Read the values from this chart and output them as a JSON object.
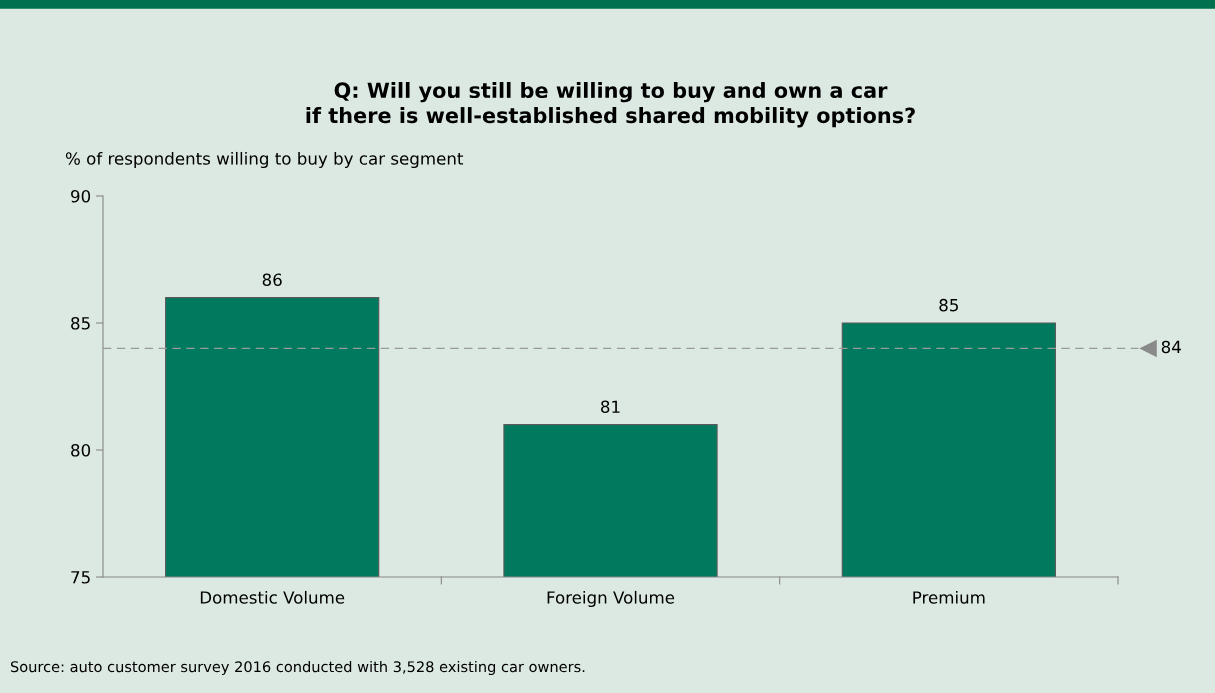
{
  "chart_data": {
    "type": "bar",
    "title": "Q: Will you still be willing to buy and own a car\nif there is well-established shared mobility options?",
    "ylabel": "% of respondents willing to buy by car segment",
    "categories": [
      "Domestic Volume",
      "Foreign Volume",
      "Premium"
    ],
    "values": [
      86,
      81,
      85
    ],
    "color": "#007a5e",
    "data_labels": true,
    "ylim": [
      75,
      90
    ],
    "yticks": [
      75,
      80,
      85,
      90
    ],
    "grid": false,
    "ref_lines": [
      {
        "axis": "y",
        "value": 84,
        "label": "84",
        "color": "#9a9a9a",
        "line_style": "dashed"
      }
    ],
    "annotations": [
      "Source: auto customer survey 2016 conducted with 3,528 existing car owners."
    ]
  }
}
